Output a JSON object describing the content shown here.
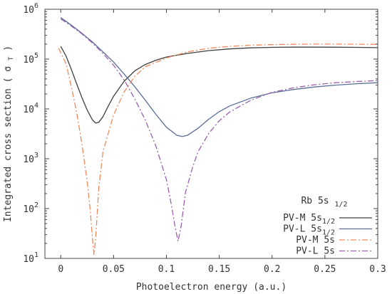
{
  "chart_data": {
    "type": "line",
    "xlabel": "Photoelectron energy (a.u.)",
    "ylabel": "Integrated cross section",
    "ylabel_symbol": "σ",
    "ylabel_sub": "T",
    "xlim": [
      -0.015,
      0.3
    ],
    "ylim": [
      10,
      1000000
    ],
    "yscale": "log",
    "x_ticks": [
      {
        "value": 0,
        "label": "0"
      },
      {
        "value": 0.05,
        "label": "0.05"
      },
      {
        "value": 0.1,
        "label": "0.1"
      },
      {
        "value": 0.15,
        "label": "0.15"
      },
      {
        "value": 0.2,
        "label": "0.2"
      },
      {
        "value": 0.25,
        "label": "0.25"
      },
      {
        "value": 0.3,
        "label": "0.3"
      }
    ],
    "y_ticks": [
      {
        "value": 10,
        "base": "10",
        "exp": "1"
      },
      {
        "value": 100,
        "base": "10",
        "exp": "2"
      },
      {
        "value": 1000,
        "base": "10",
        "exp": "3"
      },
      {
        "value": 10000,
        "base": "10",
        "exp": "4"
      },
      {
        "value": 100000,
        "base": "10",
        "exp": "5"
      },
      {
        "value": 1000000,
        "base": "10",
        "exp": "6"
      }
    ],
    "legend": {
      "title": "Rb 5s",
      "title_sub": "1/2",
      "placement": "bottom-right"
    },
    "series": [
      {
        "name": "PV-M 5s",
        "name_sub": "1/2",
        "color": "#404040",
        "dash": "solid",
        "x": [
          0,
          0.005,
          0.01,
          0.015,
          0.02,
          0.025,
          0.03,
          0.033,
          0.036,
          0.04,
          0.045,
          0.05,
          0.06,
          0.07,
          0.08,
          0.09,
          0.1,
          0.12,
          0.14,
          0.16,
          0.18,
          0.2,
          0.22,
          0.24,
          0.26,
          0.28,
          0.3
        ],
        "y": [
          180000,
          115000,
          62000,
          32000,
          17000,
          9500,
          6000,
          5200,
          5400,
          7000,
          11500,
          18000,
          36000,
          58000,
          78000,
          95000,
          110000,
          130000,
          148000,
          160000,
          168000,
          172000,
          174000,
          174000,
          173000,
          172000,
          170000
        ]
      },
      {
        "name": "PV-L 5s",
        "name_sub": "1/2",
        "color": "#5a6e96",
        "dash": "solid",
        "x": [
          0,
          0.01,
          0.02,
          0.03,
          0.04,
          0.05,
          0.06,
          0.07,
          0.08,
          0.09,
          0.1,
          0.11,
          0.115,
          0.12,
          0.13,
          0.14,
          0.15,
          0.16,
          0.18,
          0.2,
          0.22,
          0.24,
          0.26,
          0.28,
          0.3
        ],
        "y": [
          680000,
          480000,
          330000,
          220000,
          140000,
          87000,
          50000,
          28000,
          15000,
          7800,
          4300,
          2950,
          2800,
          2950,
          4100,
          6200,
          8800,
          11500,
          16500,
          21000,
          24500,
          27500,
          30000,
          32000,
          33500
        ]
      },
      {
        "name": "PV-M 5s",
        "name_sub": "",
        "color": "#f08a5d",
        "dash": "8,3,2,3",
        "x": [
          -0.002,
          0.005,
          0.01,
          0.015,
          0.02,
          0.025,
          0.028,
          0.03,
          0.0315,
          0.033,
          0.036,
          0.04,
          0.05,
          0.06,
          0.07,
          0.08,
          0.1,
          0.12,
          0.14,
          0.16,
          0.18,
          0.2,
          0.22,
          0.24,
          0.26,
          0.28,
          0.3
        ],
        "y": [
          165000,
          80000,
          28000,
          8500,
          2000,
          350,
          90,
          25,
          12,
          25,
          260,
          1400,
          7600,
          22000,
          45000,
          70000,
          105000,
          140000,
          165000,
          180000,
          190000,
          195000,
          198000,
          200000,
          200000,
          199000,
          197000
        ]
      },
      {
        "name": "PV-L 5s",
        "name_sub": "",
        "color": "#9a5fb0",
        "dash": "8,3,2,3",
        "x": [
          0,
          0.01,
          0.02,
          0.03,
          0.04,
          0.05,
          0.06,
          0.07,
          0.08,
          0.09,
          0.1,
          0.105,
          0.108,
          0.111,
          0.114,
          0.118,
          0.125,
          0.13,
          0.14,
          0.15,
          0.16,
          0.18,
          0.2,
          0.22,
          0.24,
          0.26,
          0.28,
          0.3
        ],
        "y": [
          640000,
          460000,
          320000,
          210000,
          130000,
          75000,
          38000,
          16000,
          6000,
          1800,
          380,
          110,
          45,
          22,
          45,
          210,
          700,
          1400,
          3200,
          5800,
          8700,
          15000,
          21500,
          26500,
          30500,
          33500,
          35500,
          37000
        ]
      }
    ]
  }
}
